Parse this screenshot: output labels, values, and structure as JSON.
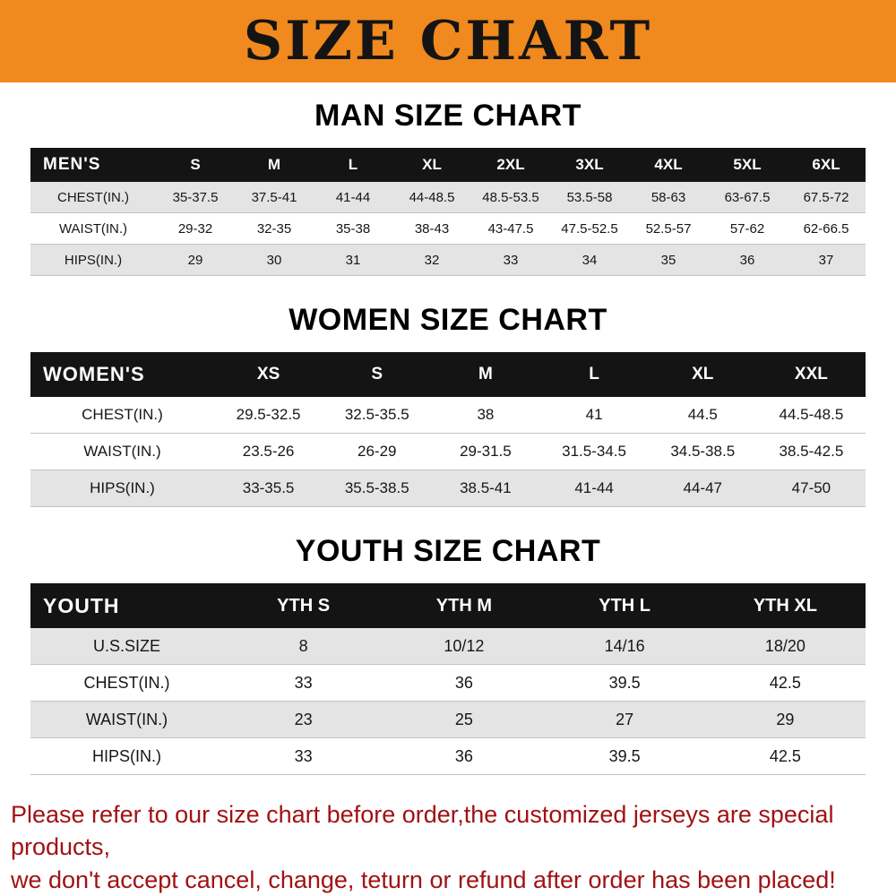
{
  "banner": {
    "title": "SIZE CHART",
    "background": "#f0891e"
  },
  "sections": [
    {
      "heading": "MAN SIZE CHART",
      "table": {
        "label": "MEN'S",
        "columns": [
          "S",
          "M",
          "L",
          "XL",
          "2XL",
          "3XL",
          "4XL",
          "5XL",
          "6XL"
        ],
        "rows": [
          {
            "label": "CHEST(IN.)",
            "values": [
              "35-37.5",
              "37.5-41",
              "41-44",
              "44-48.5",
              "48.5-53.5",
              "53.5-58",
              "58-63",
              "63-67.5",
              "67.5-72"
            ]
          },
          {
            "label": "WAIST(IN.)",
            "values": [
              "29-32",
              "32-35",
              "35-38",
              "38-43",
              "43-47.5",
              "47.5-52.5",
              "52.5-57",
              "57-62",
              "62-66.5"
            ]
          },
          {
            "label": "HIPS(IN.)",
            "values": [
              "29",
              "30",
              "31",
              "32",
              "33",
              "34",
              "35",
              "36",
              "37"
            ]
          }
        ]
      }
    },
    {
      "heading": "WOMEN SIZE CHART",
      "table": {
        "label": "WOMEN'S",
        "columns": [
          "XS",
          "S",
          "M",
          "L",
          "XL",
          "XXL"
        ],
        "rows": [
          {
            "label": "CHEST(IN.)",
            "values": [
              "29.5-32.5",
              "32.5-35.5",
              "38",
              "41",
              "44.5",
              "44.5-48.5"
            ]
          },
          {
            "label": "WAIST(IN.)",
            "values": [
              "23.5-26",
              "26-29",
              "29-31.5",
              "31.5-34.5",
              "34.5-38.5",
              "38.5-42.5"
            ]
          },
          {
            "label": "HIPS(IN.)",
            "values": [
              "33-35.5",
              "35.5-38.5",
              "38.5-41",
              "41-44",
              "44-47",
              "47-50"
            ]
          }
        ]
      }
    },
    {
      "heading": "YOUTH SIZE CHART",
      "table": {
        "label": "YOUTH",
        "columns": [
          "YTH S",
          "YTH M",
          "YTH L",
          "YTH XL"
        ],
        "rows": [
          {
            "label": "U.S.SIZE",
            "values": [
              "8",
              "10/12",
              "14/16",
              "18/20"
            ]
          },
          {
            "label": "CHEST(IN.)",
            "values": [
              "33",
              "36",
              "39.5",
              "42.5"
            ]
          },
          {
            "label": "WAIST(IN.)",
            "values": [
              "23",
              "25",
              "27",
              "29"
            ]
          },
          {
            "label": "HIPS(IN.)",
            "values": [
              "33",
              "36",
              "39.5",
              "42.5"
            ]
          }
        ]
      }
    }
  ],
  "disclaimer": {
    "lines": [
      "Please refer to our size chart before order,the customized jerseys are special products,",
      "we don't accept cancel, change, teturn or refund after order has been placed!"
    ],
    "color": "#a01214"
  }
}
